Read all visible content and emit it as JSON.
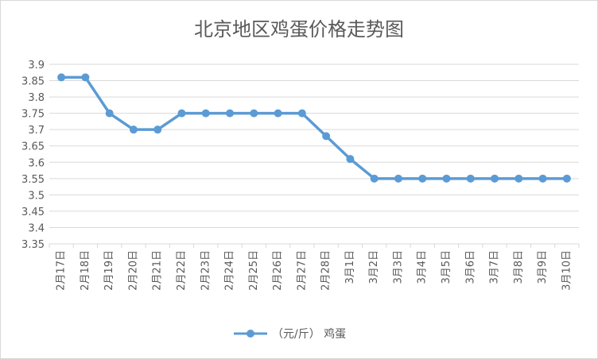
{
  "chart_data": {
    "type": "line",
    "title": "北京地区鸡蛋价格走势图",
    "xlabel": "",
    "ylabel": "",
    "categories": [
      "2月17日",
      "2月18日",
      "2月19日",
      "2月20日",
      "2月21日",
      "2月22日",
      "2月23日",
      "2月24日",
      "2月25日",
      "2月26日",
      "2月27日",
      "2月28日",
      "3月1日",
      "3月2日",
      "3月3日",
      "3月4日",
      "3月5日",
      "3月6日",
      "3月7日",
      "3月8日",
      "3月9日",
      "3月10日"
    ],
    "y_ticks": [
      "3.35",
      "3.4",
      "3.45",
      "3.5",
      "3.55",
      "3.6",
      "3.65",
      "3.7",
      "3.75",
      "3.8",
      "3.85",
      "3.9"
    ],
    "ylim": [
      3.35,
      3.9
    ],
    "grid": true,
    "legend_position": "bottom",
    "series": [
      {
        "name": "（元/斤） 鸡蛋",
        "color": "#5b9bd5",
        "values": [
          3.86,
          3.86,
          3.75,
          3.7,
          3.7,
          3.75,
          3.75,
          3.75,
          3.75,
          3.75,
          3.75,
          3.68,
          3.61,
          3.55,
          3.55,
          3.55,
          3.55,
          3.55,
          3.55,
          3.55,
          3.55,
          3.55
        ]
      }
    ]
  },
  "colors": {
    "series": "#5b9bd5",
    "grid": "#d9d9d9",
    "text": "#595959"
  }
}
